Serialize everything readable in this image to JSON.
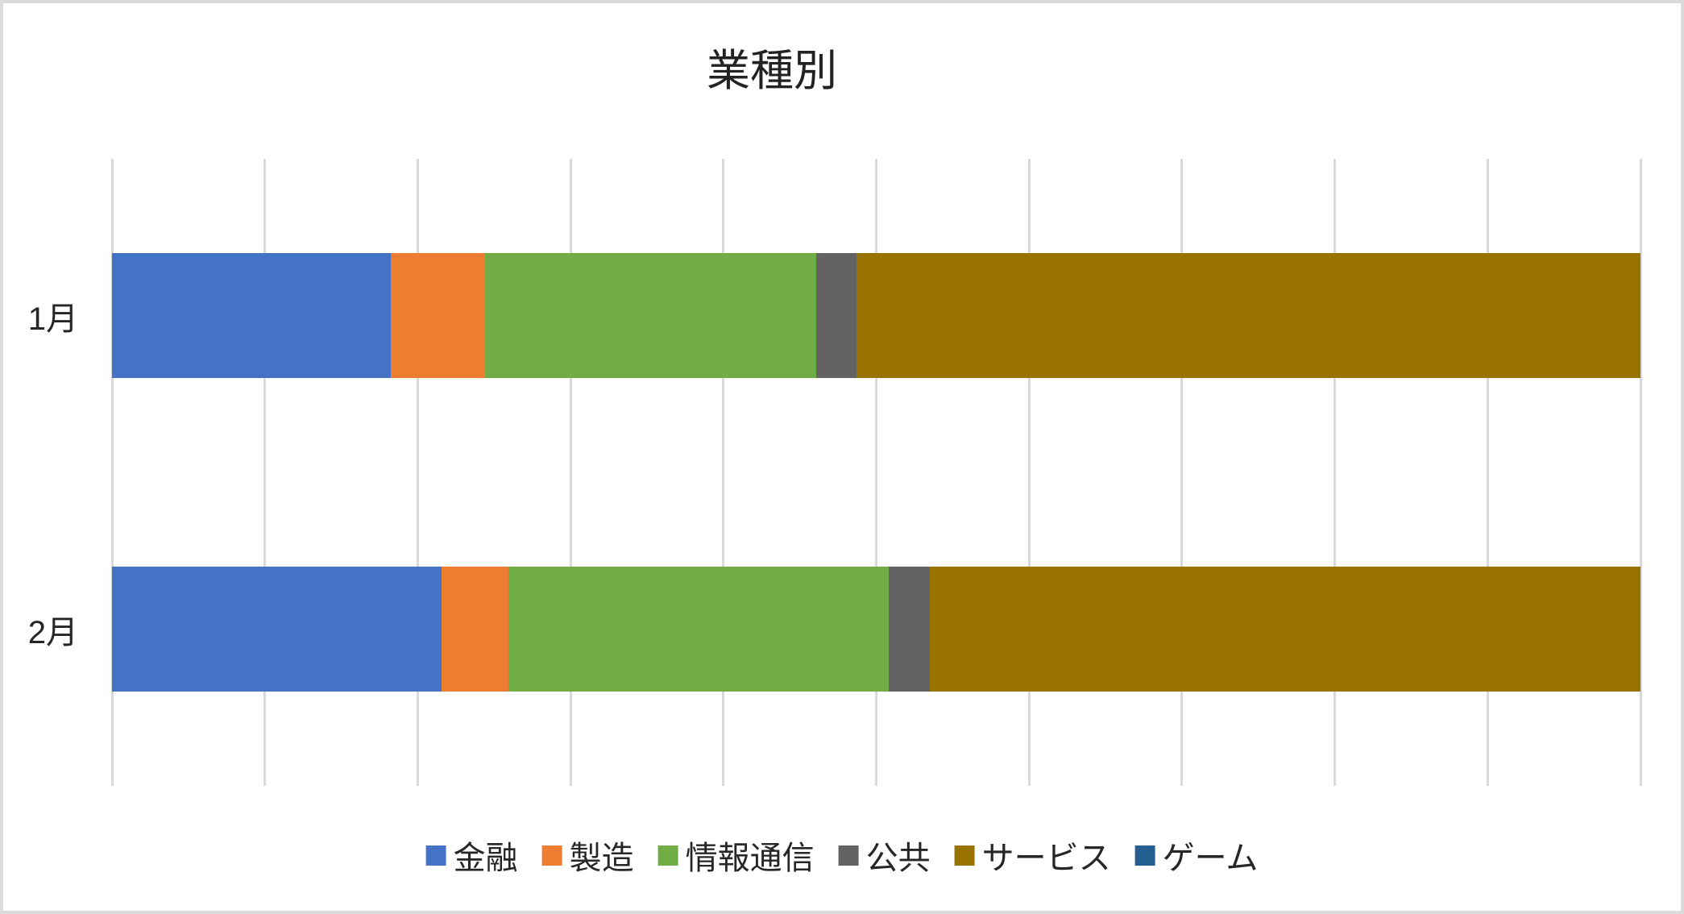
{
  "chart_data": {
    "type": "bar",
    "orientation": "horizontal",
    "stacking": "percent",
    "title": "業種別",
    "categories": [
      "1月",
      "2月"
    ],
    "series": [
      {
        "name": "金融",
        "color": "#4472C4",
        "values": [
          18.24,
          21.56
        ]
      },
      {
        "name": "製造",
        "color": "#ED7D31",
        "values": [
          6.15,
          4.38
        ]
      },
      {
        "name": "情報通信",
        "color": "#70AD47",
        "values": [
          21.7,
          24.88
        ]
      },
      {
        "name": "公共",
        "color": "#636363",
        "values": [
          2.64,
          2.69
        ]
      },
      {
        "name": "サービス",
        "color": "#997300",
        "values": [
          51.27,
          46.49
        ]
      },
      {
        "name": "ゲーム",
        "color": "#255E91",
        "values": [
          0,
          0
        ]
      }
    ],
    "unit": "%",
    "note": "values estimated from segment pixel widths of a 100% stacked bar",
    "xaxis": {
      "min": 0,
      "max": 100,
      "gridline_step": 10,
      "tick_labels_visible": false
    },
    "legend": {
      "position": "bottom",
      "entries": [
        "金融",
        "製造",
        "情報通信",
        "公共",
        "サービス",
        "ゲーム"
      ]
    },
    "grid": {
      "vertical": true,
      "horizontal": false,
      "color": "#D9D9D9"
    },
    "bar_gap": "150%",
    "frame_color": "#DBDBDB",
    "text_color": "#262626"
  }
}
